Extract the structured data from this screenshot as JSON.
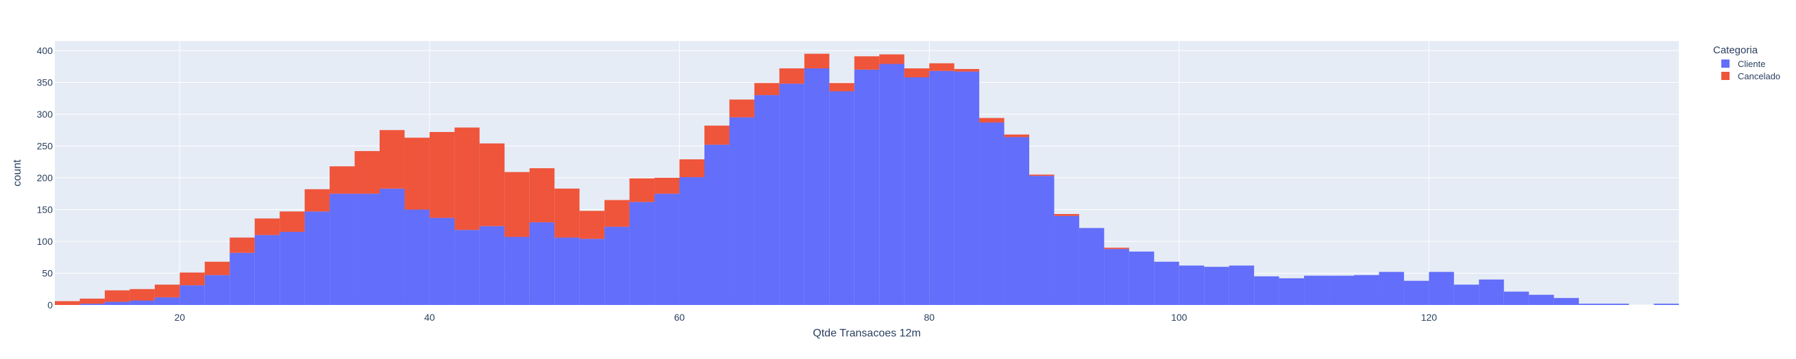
{
  "chart_data": {
    "type": "bar",
    "barmode": "stack",
    "xlabel": "Qtde Transacoes 12m",
    "ylabel": "count",
    "xlim": [
      10,
      140
    ],
    "ylim": [
      0,
      415
    ],
    "bin_width": 2,
    "x_ticks": [
      20,
      40,
      60,
      80,
      100,
      120
    ],
    "y_ticks": [
      0,
      50,
      100,
      150,
      200,
      250,
      300,
      350,
      400
    ],
    "grid": true,
    "legend": {
      "title": "Categoria",
      "placement": "top-right"
    },
    "bins_start": [
      10,
      12,
      14,
      16,
      18,
      20,
      22,
      24,
      26,
      28,
      30,
      32,
      34,
      36,
      38,
      40,
      42,
      44,
      46,
      48,
      50,
      52,
      54,
      56,
      58,
      60,
      62,
      64,
      66,
      68,
      70,
      72,
      74,
      76,
      78,
      80,
      82,
      84,
      86,
      88,
      90,
      92,
      94,
      96,
      98,
      100,
      102,
      104,
      106,
      108,
      110,
      112,
      114,
      116,
      118,
      120,
      122,
      124,
      126,
      128,
      130,
      132,
      134,
      136,
      138
    ],
    "series": [
      {
        "name": "Cliente",
        "color": "#636EFA",
        "values": [
          0,
          2,
          5,
          7,
          12,
          31,
          47,
          82,
          110,
          115,
          147,
          175,
          175,
          183,
          150,
          137,
          118,
          124,
          107,
          130,
          106,
          104,
          123,
          162,
          175,
          201,
          252,
          295,
          330,
          348,
          372,
          336,
          370,
          379,
          358,
          368,
          367,
          287,
          264,
          203,
          140,
          121,
          88,
          84,
          68,
          62,
          60,
          62,
          45,
          42,
          46,
          46,
          47,
          52,
          38,
          52,
          32,
          40,
          21,
          16,
          11,
          2,
          2,
          0,
          2
        ]
      },
      {
        "name": "Cancelado",
        "color": "#EF553B",
        "values": [
          6,
          8,
          18,
          18,
          20,
          20,
          21,
          24,
          26,
          32,
          35,
          43,
          67,
          92,
          113,
          135,
          161,
          130,
          102,
          85,
          77,
          44,
          42,
          37,
          25,
          28,
          30,
          28,
          19,
          24,
          23,
          13,
          21,
          15,
          14,
          12,
          4,
          7,
          4,
          2,
          3,
          0,
          2,
          0,
          0,
          0,
          0,
          0,
          0,
          0,
          0,
          0,
          0,
          0,
          0,
          0,
          0,
          0,
          0,
          0,
          0,
          0,
          0,
          0,
          0
        ]
      }
    ]
  }
}
